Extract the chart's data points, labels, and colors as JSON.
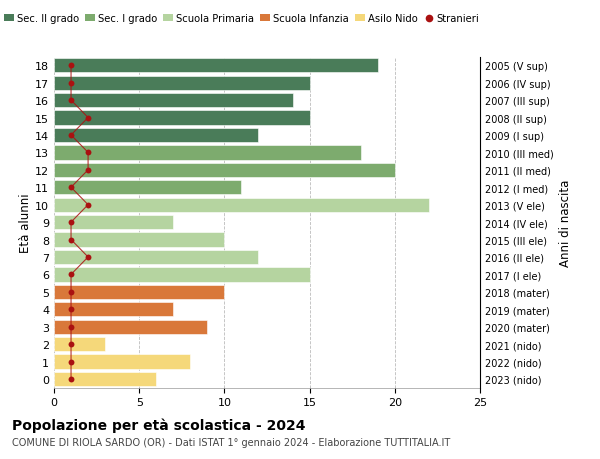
{
  "ages": [
    18,
    17,
    16,
    15,
    14,
    13,
    12,
    11,
    10,
    9,
    8,
    7,
    6,
    5,
    4,
    3,
    2,
    1,
    0
  ],
  "right_labels": [
    "2005 (V sup)",
    "2006 (IV sup)",
    "2007 (III sup)",
    "2008 (II sup)",
    "2009 (I sup)",
    "2010 (III med)",
    "2011 (II med)",
    "2012 (I med)",
    "2013 (V ele)",
    "2014 (IV ele)",
    "2015 (III ele)",
    "2016 (II ele)",
    "2017 (I ele)",
    "2018 (mater)",
    "2019 (mater)",
    "2020 (mater)",
    "2021 (nido)",
    "2022 (nido)",
    "2023 (nido)"
  ],
  "bar_values": [
    19,
    15,
    14,
    15,
    12,
    18,
    20,
    11,
    22,
    7,
    10,
    12,
    15,
    10,
    7,
    9,
    3,
    8,
    6
  ],
  "stranieri_values": [
    1,
    1,
    1,
    2,
    1,
    2,
    2,
    1,
    2,
    1,
    1,
    2,
    1,
    1,
    1,
    1,
    1,
    1,
    1
  ],
  "bar_colors": [
    "#4a7c59",
    "#4a7c59",
    "#4a7c59",
    "#4a7c59",
    "#4a7c59",
    "#7dab6e",
    "#7dab6e",
    "#7dab6e",
    "#b5d4a0",
    "#b5d4a0",
    "#b5d4a0",
    "#b5d4a0",
    "#b5d4a0",
    "#d9783a",
    "#d9783a",
    "#d9783a",
    "#f5d87a",
    "#f5d87a",
    "#f5d87a"
  ],
  "color_sec2": "#4a7c59",
  "color_sec1": "#7dab6e",
  "color_prim": "#b5d4a0",
  "color_infanzia": "#d9783a",
  "color_nido": "#f5d87a",
  "color_stranieri": "#aa1111",
  "title": "Popolazione per età scolastica - 2024",
  "subtitle": "COMUNE DI RIOLA SARDO (OR) - Dati ISTAT 1° gennaio 2024 - Elaborazione TUTTITALIA.IT",
  "ylabel_left": "Età alunni",
  "ylabel_right": "Anni di nascita",
  "xlim": [
    0,
    25
  ],
  "xticks": [
    0,
    5,
    10,
    15,
    20,
    25
  ],
  "legend_labels": [
    "Sec. II grado",
    "Sec. I grado",
    "Scuola Primaria",
    "Scuola Infanzia",
    "Asilo Nido",
    "Stranieri"
  ],
  "background_color": "#ffffff",
  "grid_color": "#bbbbbb"
}
